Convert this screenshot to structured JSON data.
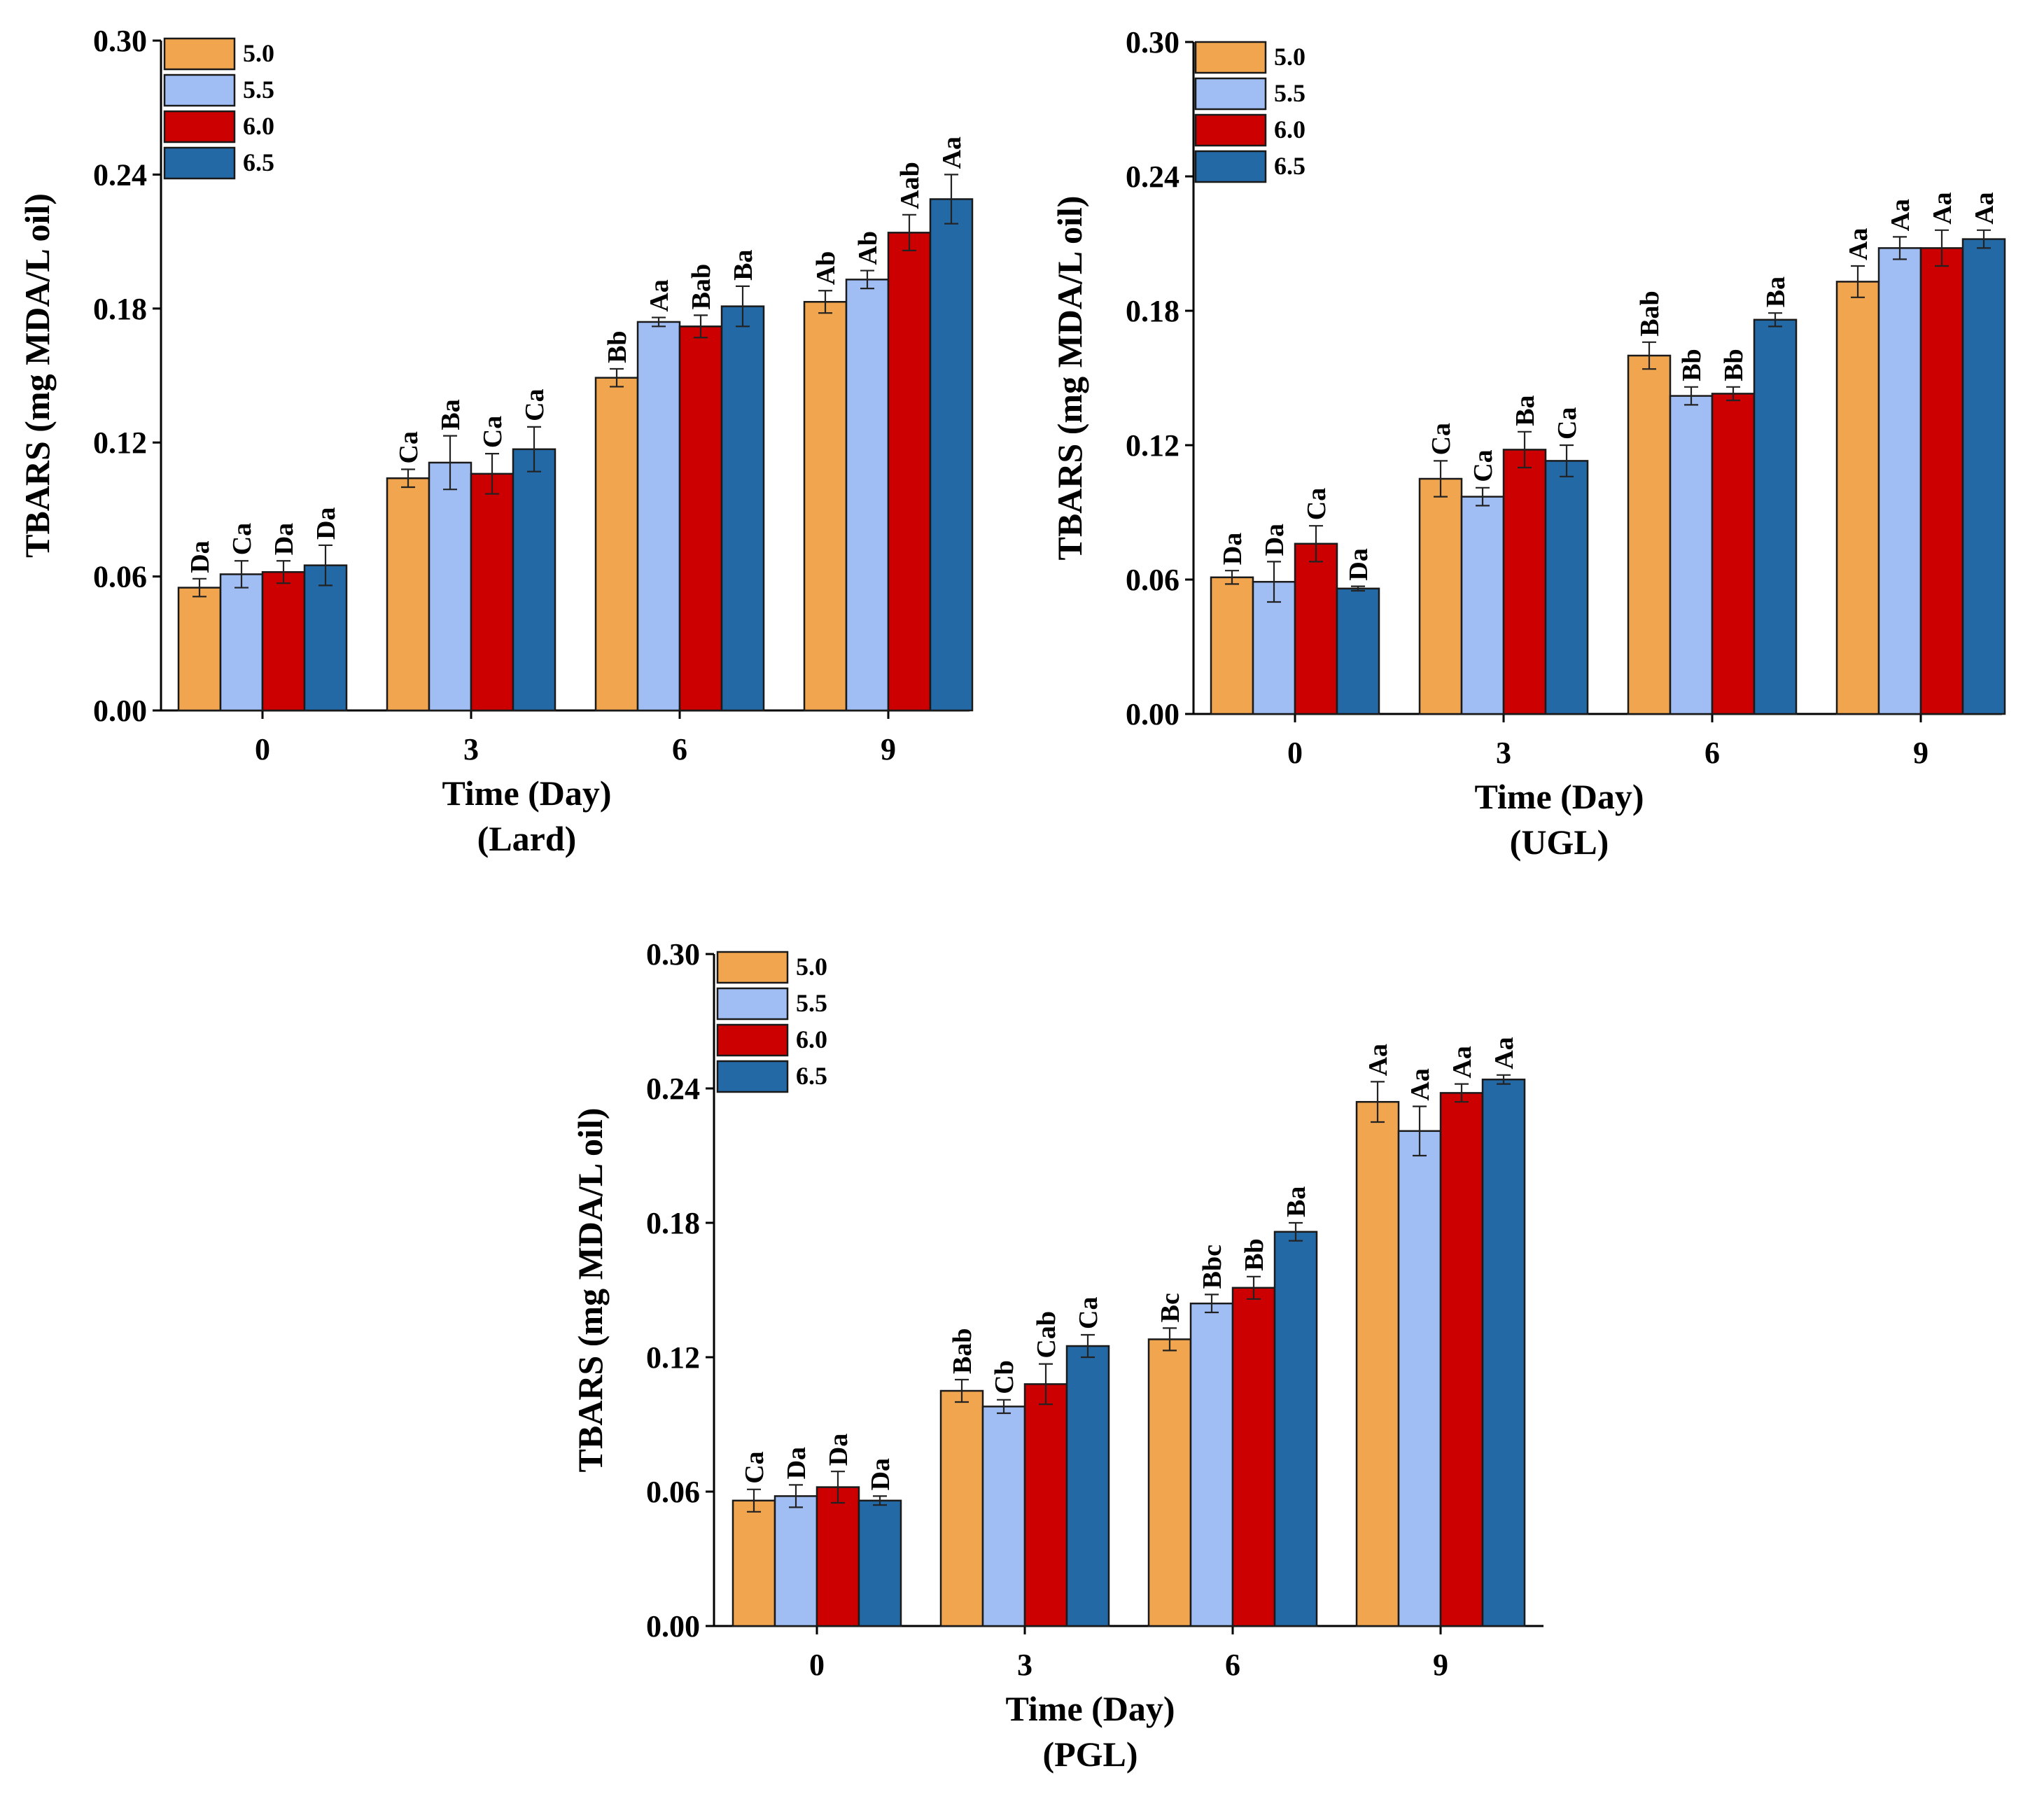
{
  "colors": {
    "5.0": "#F0A54E",
    "5.5": "#A0BEF4",
    "6.0": "#CC0000",
    "6.5": "#2269A6"
  },
  "chart_data": [
    {
      "type": "bar",
      "subtitle": "(Lard)",
      "xlabel": "Time (Day)",
      "ylabel": "TBARS (mg MDA/L oil)",
      "ylim": [
        0,
        0.3
      ],
      "yticks": [
        "0.00",
        "0.06",
        "0.12",
        "0.18",
        "0.24",
        "0.30"
      ],
      "categories": [
        "0",
        "3",
        "6",
        "9"
      ],
      "legend": [
        "5.0",
        "5.5",
        "6.0",
        "6.5"
      ],
      "series": [
        {
          "name": "5.0",
          "values": [
            0.055,
            0.104,
            0.149,
            0.183
          ],
          "errors": [
            0.004,
            0.004,
            0.004,
            0.005
          ],
          "labels": [
            "Da",
            "Ca",
            "Bb",
            "Ab"
          ]
        },
        {
          "name": "5.5",
          "values": [
            0.061,
            0.111,
            0.174,
            0.193
          ],
          "errors": [
            0.006,
            0.012,
            0.002,
            0.004
          ],
          "labels": [
            "Ca",
            "Ba",
            "Aa",
            "Ab"
          ]
        },
        {
          "name": "6.0",
          "values": [
            0.062,
            0.106,
            0.172,
            0.214
          ],
          "errors": [
            0.005,
            0.009,
            0.005,
            0.008
          ],
          "labels": [
            "Da",
            "Ca",
            "Bab",
            "Aab"
          ]
        },
        {
          "name": "6.5",
          "values": [
            0.065,
            0.117,
            0.181,
            0.229
          ],
          "errors": [
            0.009,
            0.01,
            0.009,
            0.011
          ],
          "labels": [
            "Da",
            "Ca",
            "Ba",
            "Aa"
          ]
        }
      ]
    },
    {
      "type": "bar",
      "subtitle": "(UGL)",
      "xlabel": "Time (Day)",
      "ylabel": "TBARS (mg MDA/L oil)",
      "ylim": [
        0,
        0.3
      ],
      "yticks": [
        "0.00",
        "0.06",
        "0.12",
        "0.18",
        "0.24",
        "0.30"
      ],
      "categories": [
        "0",
        "3",
        "6",
        "9"
      ],
      "legend": [
        "5.0",
        "5.5",
        "6.0",
        "6.5"
      ],
      "series": [
        {
          "name": "5.0",
          "values": [
            0.061,
            0.105,
            0.16,
            0.193
          ],
          "errors": [
            0.003,
            0.008,
            0.006,
            0.007
          ],
          "labels": [
            "Da",
            "Ca",
            "Bab",
            "Aa"
          ]
        },
        {
          "name": "5.5",
          "values": [
            0.059,
            0.097,
            0.142,
            0.208
          ],
          "errors": [
            0.009,
            0.004,
            0.004,
            0.005
          ],
          "labels": [
            "Da",
            "Ca",
            "Bb",
            "Aa"
          ]
        },
        {
          "name": "6.0",
          "values": [
            0.076,
            0.118,
            0.143,
            0.208
          ],
          "errors": [
            0.008,
            0.008,
            0.003,
            0.008
          ],
          "labels": [
            "Ca",
            "Ba",
            "Bb",
            "Aa"
          ]
        },
        {
          "name": "6.5",
          "values": [
            0.056,
            0.113,
            0.176,
            0.212
          ],
          "errors": [
            0.001,
            0.007,
            0.003,
            0.004
          ],
          "labels": [
            "Da",
            "Ca",
            "Ba",
            "Aa"
          ]
        }
      ]
    },
    {
      "type": "bar",
      "subtitle": "(PGL)",
      "xlabel": "Time (Day)",
      "ylabel": "TBARS (mg MDA/L oil)",
      "ylim": [
        0,
        0.3
      ],
      "yticks": [
        "0.00",
        "0.06",
        "0.12",
        "0.18",
        "0.24",
        "0.30"
      ],
      "categories": [
        "0",
        "3",
        "6",
        "9"
      ],
      "legend": [
        "5.0",
        "5.5",
        "6.0",
        "6.5"
      ],
      "series": [
        {
          "name": "5.0",
          "values": [
            0.056,
            0.105,
            0.128,
            0.234
          ],
          "errors": [
            0.005,
            0.005,
            0.005,
            0.009
          ],
          "labels": [
            "Ca",
            "Bab",
            "Bc",
            "Aa"
          ]
        },
        {
          "name": "5.5",
          "values": [
            0.058,
            0.098,
            0.144,
            0.221
          ],
          "errors": [
            0.005,
            0.003,
            0.004,
            0.011
          ],
          "labels": [
            "Da",
            "Cb",
            "Bbc",
            "Aa"
          ]
        },
        {
          "name": "6.0",
          "values": [
            0.062,
            0.108,
            0.151,
            0.238
          ],
          "errors": [
            0.007,
            0.009,
            0.005,
            0.004
          ],
          "labels": [
            "Da",
            "Cab",
            "Bb",
            "Aa"
          ]
        },
        {
          "name": "6.5",
          "values": [
            0.056,
            0.125,
            0.176,
            0.244
          ],
          "errors": [
            0.002,
            0.005,
            0.004,
            0.002
          ],
          "labels": [
            "Da",
            "Ca",
            "Ba",
            "Aa"
          ]
        }
      ]
    }
  ]
}
